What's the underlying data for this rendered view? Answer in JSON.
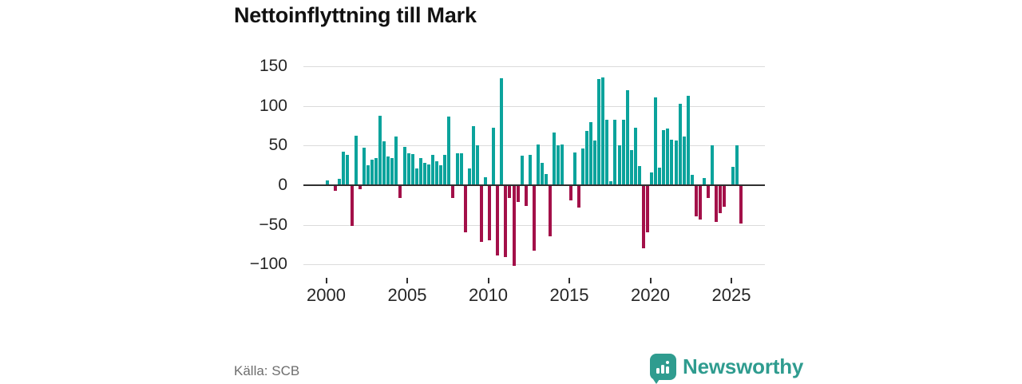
{
  "title": "Nettoinflyttning till Mark",
  "source": "Källa: SCB",
  "brand": {
    "name": "Newsworthy"
  },
  "colors": {
    "positive": "#0ba39c",
    "negative": "#a31049",
    "grid": "#dbdbdb",
    "axis": "#2f2f2f",
    "brand_teal": "#2f9c8f"
  },
  "chart_data": {
    "type": "bar",
    "title": "Nettoinflyttning till Mark",
    "frequency": "quarterly",
    "start_period": "2000-Q1",
    "end_period": "2025-Q3",
    "grid": true,
    "ylim": [
      -110,
      160
    ],
    "y_ticks": [
      150,
      100,
      50,
      0,
      -50,
      -100
    ],
    "y_tick_labels": [
      "150",
      "100",
      "50",
      "0",
      "−50",
      "−100"
    ],
    "x_tick_labels": [
      "2000",
      "2005",
      "2010",
      "2015",
      "2020",
      "2025"
    ],
    "values": [
      6,
      0,
      -6,
      8,
      42,
      38,
      -50,
      62,
      -4,
      47,
      25,
      32,
      34,
      88,
      55,
      36,
      34,
      61,
      -15,
      48,
      40,
      39,
      21,
      34,
      28,
      26,
      38,
      30,
      25,
      38,
      87,
      -15,
      40,
      40,
      -58,
      21,
      75,
      50,
      -70,
      10,
      -68,
      73,
      -88,
      135,
      -90,
      -15,
      -101,
      -20,
      37,
      -25,
      38,
      -82,
      51,
      28,
      14,
      -63,
      66,
      50,
      51,
      0,
      -18,
      41,
      -27,
      46,
      68,
      80,
      56,
      134,
      136,
      83,
      5,
      83,
      50,
      83,
      120,
      44,
      73,
      24,
      -79,
      -58,
      16,
      111,
      22,
      69,
      72,
      57,
      56,
      103,
      61,
      113,
      13,
      -38,
      -42,
      9,
      -15,
      50,
      -45,
      -34,
      -26,
      0,
      23,
      50,
      -47
    ]
  }
}
